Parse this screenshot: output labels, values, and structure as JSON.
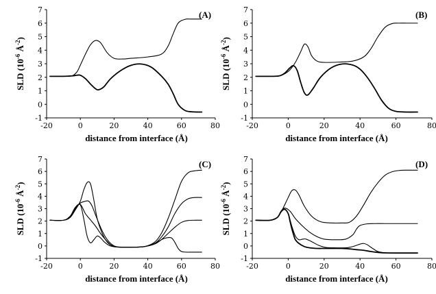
{
  "chart_data": [
    {
      "type": "line",
      "panel_label": "(A)",
      "xlabel": "distance from interface (Å)",
      "ylabel_main": "SLD (10",
      "ylabel_sup": "-6",
      "ylabel_unit": " Å",
      "ylabel_unit_sup": "-2",
      "ylabel_close": ")",
      "xlim": [
        -20,
        80
      ],
      "ylim": [
        -1,
        7
      ],
      "xticks": [
        "-20",
        "0",
        "20",
        "40",
        "60",
        "80"
      ],
      "yticks": [
        "-1",
        "0",
        "1",
        "2",
        "3",
        "4",
        "5",
        "6",
        "7"
      ],
      "series": [
        {
          "weight": "thin",
          "x": [
            -18,
            -10,
            -5,
            -2,
            0,
            3,
            6,
            9,
            12,
            16,
            20,
            25,
            30,
            40,
            48,
            52,
            55,
            58,
            62,
            66,
            72
          ],
          "y": [
            2.07,
            2.07,
            2.1,
            2.4,
            2.9,
            3.7,
            4.4,
            4.72,
            4.55,
            3.8,
            3.4,
            3.35,
            3.4,
            3.5,
            3.7,
            4.3,
            5.2,
            6.0,
            6.28,
            6.3,
            6.3
          ]
        },
        {
          "weight": "thick",
          "x": [
            -18,
            -10,
            -5,
            -2,
            0,
            3,
            6,
            9,
            11,
            14,
            18,
            24,
            30,
            36,
            42,
            48,
            52,
            55,
            58,
            62,
            66,
            72
          ],
          "y": [
            2.07,
            2.07,
            2.1,
            2.15,
            2.15,
            1.9,
            1.5,
            1.15,
            1.08,
            1.3,
            1.9,
            2.5,
            2.88,
            2.98,
            2.75,
            2.1,
            1.5,
            0.8,
            0.0,
            -0.45,
            -0.55,
            -0.57
          ]
        }
      ]
    },
    {
      "type": "line",
      "panel_label": "(B)",
      "xlabel": "distance from interface (Å)",
      "ylabel_main": "SLD (10",
      "ylabel_sup": "-6",
      "ylabel_unit": " Å",
      "ylabel_unit_sup": "-2",
      "ylabel_close": ")",
      "xlim": [
        -20,
        80
      ],
      "ylim": [
        -1,
        7
      ],
      "xticks": [
        "-20",
        "0",
        "20",
        "40",
        "60",
        "80"
      ],
      "yticks": [
        "-1",
        "0",
        "1",
        "2",
        "3",
        "4",
        "5",
        "6",
        "7"
      ],
      "series": [
        {
          "weight": "thin",
          "x": [
            -18,
            -10,
            -5,
            -2,
            1,
            4,
            7,
            9,
            11,
            13,
            16,
            20,
            28,
            36,
            42,
            46,
            50,
            54,
            58,
            62,
            66,
            72
          ],
          "y": [
            2.07,
            2.07,
            2.1,
            2.25,
            2.55,
            3.1,
            3.9,
            4.45,
            4.25,
            3.6,
            3.2,
            3.1,
            3.12,
            3.2,
            3.5,
            4.1,
            5.0,
            5.7,
            5.97,
            6.0,
            6.0,
            6.0
          ]
        },
        {
          "weight": "thick",
          "x": [
            -18,
            -10,
            -5,
            -2,
            1,
            3,
            5,
            7,
            9,
            11,
            14,
            18,
            24,
            30,
            36,
            40,
            44,
            48,
            52,
            56,
            60,
            66,
            72
          ],
          "y": [
            2.07,
            2.07,
            2.1,
            2.3,
            2.7,
            2.85,
            2.5,
            1.6,
            0.85,
            0.7,
            1.2,
            2.0,
            2.7,
            2.98,
            2.9,
            2.6,
            2.0,
            1.2,
            0.3,
            -0.3,
            -0.52,
            -0.57,
            -0.57
          ]
        }
      ]
    },
    {
      "type": "line",
      "panel_label": "(C)",
      "xlabel": "distance from interface (Å)",
      "ylabel_main": "SLD (10",
      "ylabel_sup": "-6",
      "ylabel_unit": " Å",
      "ylabel_unit_sup": "-2",
      "ylabel_close": ")",
      "xlim": [
        -20,
        80
      ],
      "ylim": [
        -1,
        7
      ],
      "xticks": [
        "-20",
        "0",
        "20",
        "40",
        "60",
        "80"
      ],
      "yticks": [
        "-1",
        "0",
        "1",
        "2",
        "3",
        "4",
        "5",
        "6",
        "7"
      ],
      "series": [
        {
          "weight": "thin",
          "x": [
            -18,
            -10,
            -6,
            -3,
            0,
            2,
            4,
            6,
            8,
            10,
            13,
            16,
            19,
            22,
            30,
            38,
            44,
            48,
            52,
            56,
            60,
            64,
            68,
            72
          ],
          "y": [
            2.07,
            2.07,
            2.3,
            2.9,
            3.6,
            4.5,
            5.1,
            5.0,
            3.7,
            2.2,
            1.0,
            0.3,
            0.0,
            -0.08,
            -0.1,
            -0.05,
            0.3,
            1.0,
            2.2,
            3.7,
            5.2,
            5.9,
            6.05,
            6.1
          ]
        },
        {
          "weight": "thin",
          "x": [
            -18,
            -10,
            -6,
            -3,
            0,
            3,
            5,
            7,
            9,
            12,
            15,
            18,
            22,
            30,
            38,
            44,
            48,
            52,
            56,
            60,
            64,
            68,
            72
          ],
          "y": [
            2.07,
            2.07,
            2.35,
            3.0,
            3.45,
            3.6,
            3.6,
            3.2,
            2.5,
            1.5,
            0.7,
            0.2,
            -0.08,
            -0.1,
            -0.05,
            0.2,
            0.7,
            1.5,
            2.6,
            3.4,
            3.8,
            3.9,
            3.9
          ]
        },
        {
          "weight": "thin",
          "x": [
            -18,
            -10,
            -6,
            -3,
            0,
            3,
            6,
            9,
            12,
            15,
            18,
            22,
            30,
            38,
            44,
            48,
            52,
            56,
            60,
            64,
            68,
            72
          ],
          "y": [
            2.07,
            2.07,
            2.4,
            3.1,
            3.35,
            2.6,
            2.1,
            1.6,
            1.0,
            0.5,
            0.1,
            -0.08,
            -0.1,
            -0.05,
            0.15,
            0.5,
            1.0,
            1.5,
            1.9,
            2.05,
            2.07,
            2.07
          ]
        },
        {
          "weight": "thin",
          "x": [
            -18,
            -10,
            -6,
            -3,
            0,
            2,
            4,
            6,
            8,
            10,
            12,
            14,
            17,
            20,
            24,
            30,
            38,
            44,
            48,
            51,
            54,
            56,
            58,
            60,
            63,
            66,
            72
          ],
          "y": [
            2.07,
            2.07,
            2.4,
            3.1,
            3.3,
            2.2,
            0.8,
            0.25,
            0.5,
            0.8,
            0.65,
            0.35,
            0.05,
            -0.07,
            -0.1,
            -0.1,
            -0.05,
            0.2,
            0.5,
            0.65,
            0.65,
            0.3,
            -0.2,
            -0.45,
            -0.5,
            -0.5,
            -0.5
          ]
        }
      ]
    },
    {
      "type": "line",
      "panel_label": "(D)",
      "xlabel": "distance from interface (Å)",
      "ylabel_main": "SLD (10",
      "ylabel_sup": "-6",
      "ylabel_unit": " Å",
      "ylabel_unit_sup": "-2",
      "ylabel_close": ")",
      "xlim": [
        -20,
        80
      ],
      "ylim": [
        -1,
        7
      ],
      "xticks": [
        "-20",
        "0",
        "20",
        "40",
        "60",
        "80"
      ],
      "yticks": [
        "-1",
        "0",
        "1",
        "2",
        "3",
        "4",
        "5",
        "6",
        "7"
      ],
      "series": [
        {
          "weight": "thin",
          "x": [
            -18,
            -10,
            -6,
            -3,
            0,
            2,
            4,
            6,
            9,
            13,
            18,
            24,
            30,
            34,
            38,
            42,
            46,
            50,
            54,
            58,
            62,
            66,
            72
          ],
          "y": [
            2.07,
            2.07,
            2.3,
            3.0,
            3.9,
            4.45,
            4.5,
            4.1,
            3.2,
            2.4,
            1.95,
            1.85,
            1.85,
            1.9,
            2.4,
            3.3,
            4.3,
            5.1,
            5.7,
            5.98,
            6.08,
            6.1,
            6.1
          ]
        },
        {
          "weight": "thin",
          "x": [
            -18,
            -10,
            -6,
            -4,
            -2,
            1,
            4,
            8,
            12,
            16,
            20,
            26,
            32,
            36,
            38,
            40,
            44,
            48,
            54,
            60,
            66,
            72
          ],
          "y": [
            2.07,
            2.07,
            2.3,
            2.8,
            3.05,
            2.8,
            2.2,
            1.6,
            1.1,
            0.75,
            0.55,
            0.5,
            0.55,
            0.9,
            1.35,
            1.65,
            1.78,
            1.8,
            1.8,
            1.8,
            1.8,
            1.8
          ]
        },
        {
          "weight": "thin",
          "x": [
            -18,
            -10,
            -6,
            -4,
            -2,
            0,
            2,
            4,
            6,
            8,
            10,
            13,
            17,
            21,
            26,
            32,
            36,
            40,
            42,
            44,
            47,
            50,
            54,
            60,
            66,
            72
          ],
          "y": [
            2.07,
            2.07,
            2.3,
            2.75,
            2.95,
            2.6,
            1.6,
            0.8,
            0.5,
            0.55,
            0.55,
            0.35,
            0.05,
            -0.12,
            -0.15,
            -0.15,
            -0.05,
            0.15,
            0.2,
            0.1,
            -0.2,
            -0.45,
            -0.55,
            -0.57,
            -0.57,
            -0.57
          ]
        },
        {
          "weight": "thick",
          "x": [
            -18,
            -10,
            -6,
            -4,
            -2,
            0,
            1,
            2,
            3,
            4,
            6,
            9,
            12,
            16,
            20,
            25,
            30,
            35,
            38,
            42,
            46,
            50,
            54,
            60,
            66,
            72
          ],
          "y": [
            2.07,
            2.07,
            2.3,
            2.75,
            2.95,
            2.6,
            2.0,
            1.4,
            0.9,
            0.5,
            0.2,
            -0.05,
            -0.15,
            -0.2,
            -0.2,
            -0.2,
            -0.2,
            -0.25,
            -0.3,
            -0.35,
            -0.45,
            -0.52,
            -0.56,
            -0.57,
            -0.57,
            -0.57
          ]
        }
      ]
    }
  ]
}
